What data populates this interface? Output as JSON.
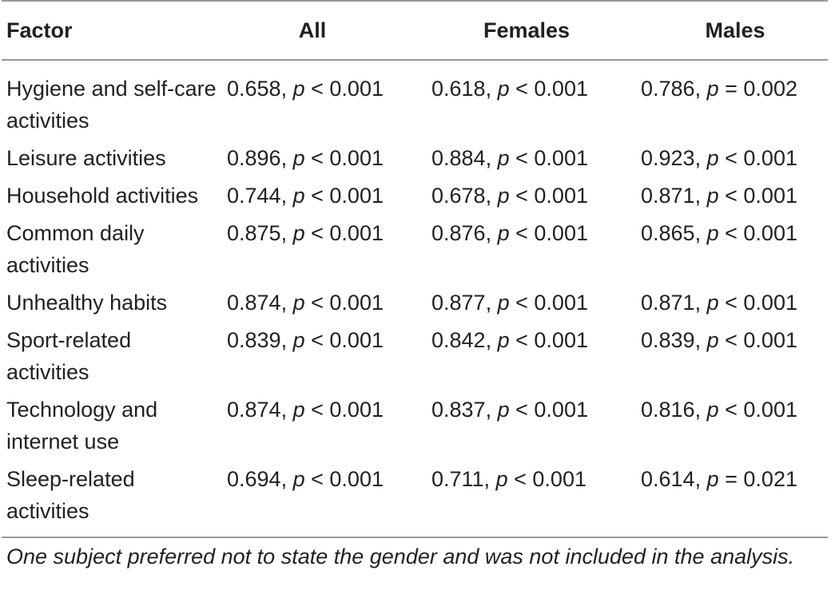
{
  "header": {
    "factor": "Factor",
    "all": "All",
    "females": "Females",
    "males": "Males"
  },
  "rows": [
    {
      "factor": "Hygiene and self-care activities",
      "all": {
        "r": "0.658,",
        "p": "p",
        "rel": "< 0.001"
      },
      "females": {
        "r": "0.618,",
        "p": "p",
        "rel": "< 0.001"
      },
      "males": {
        "r": "0.786,",
        "p": "p",
        "rel": "= 0.002"
      }
    },
    {
      "factor": "Leisure activities",
      "all": {
        "r": "0.896,",
        "p": "p",
        "rel": "< 0.001"
      },
      "females": {
        "r": "0.884,",
        "p": "p",
        "rel": "< 0.001"
      },
      "males": {
        "r": "0.923,",
        "p": "p",
        "rel": "< 0.001"
      }
    },
    {
      "factor": "Household activities",
      "all": {
        "r": "0.744,",
        "p": "p",
        "rel": "< 0.001"
      },
      "females": {
        "r": "0.678,",
        "p": "p",
        "rel": "< 0.001"
      },
      "males": {
        "r": "0.871,",
        "p": "p",
        "rel": "< 0.001"
      }
    },
    {
      "factor": "Common daily activities",
      "all": {
        "r": "0.875,",
        "p": "p",
        "rel": "< 0.001"
      },
      "females": {
        "r": "0.876,",
        "p": "p",
        "rel": "< 0.001"
      },
      "males": {
        "r": "0.865,",
        "p": "p",
        "rel": "< 0.001"
      }
    },
    {
      "factor": "Unhealthy habits",
      "all": {
        "r": "0.874,",
        "p": "p",
        "rel": "< 0.001"
      },
      "females": {
        "r": "0.877,",
        "p": "p",
        "rel": "< 0.001"
      },
      "males": {
        "r": "0.871,",
        "p": "p",
        "rel": "< 0.001"
      }
    },
    {
      "factor": "Sport-related activities",
      "all": {
        "r": "0.839,",
        "p": "p",
        "rel": "< 0.001"
      },
      "females": {
        "r": "0.842,",
        "p": "p",
        "rel": "< 0.001"
      },
      "males": {
        "r": "0.839,",
        "p": "p",
        "rel": "< 0.001"
      }
    },
    {
      "factor": "Technology and internet use",
      "all": {
        "r": "0.874,",
        "p": "p",
        "rel": "< 0.001"
      },
      "females": {
        "r": "0.837,",
        "p": "p",
        "rel": "< 0.001"
      },
      "males": {
        "r": "0.816,",
        "p": "p",
        "rel": "< 0.001"
      }
    },
    {
      "factor": "Sleep-related activities",
      "all": {
        "r": "0.694,",
        "p": "p",
        "rel": "< 0.001"
      },
      "females": {
        "r": "0.711,",
        "p": "p",
        "rel": "< 0.001"
      },
      "males": {
        "r": "0.614,",
        "p": "p",
        "rel": "= 0.021"
      }
    }
  ],
  "footnote": "One subject preferred not to state the gender and was not included in the analysis."
}
